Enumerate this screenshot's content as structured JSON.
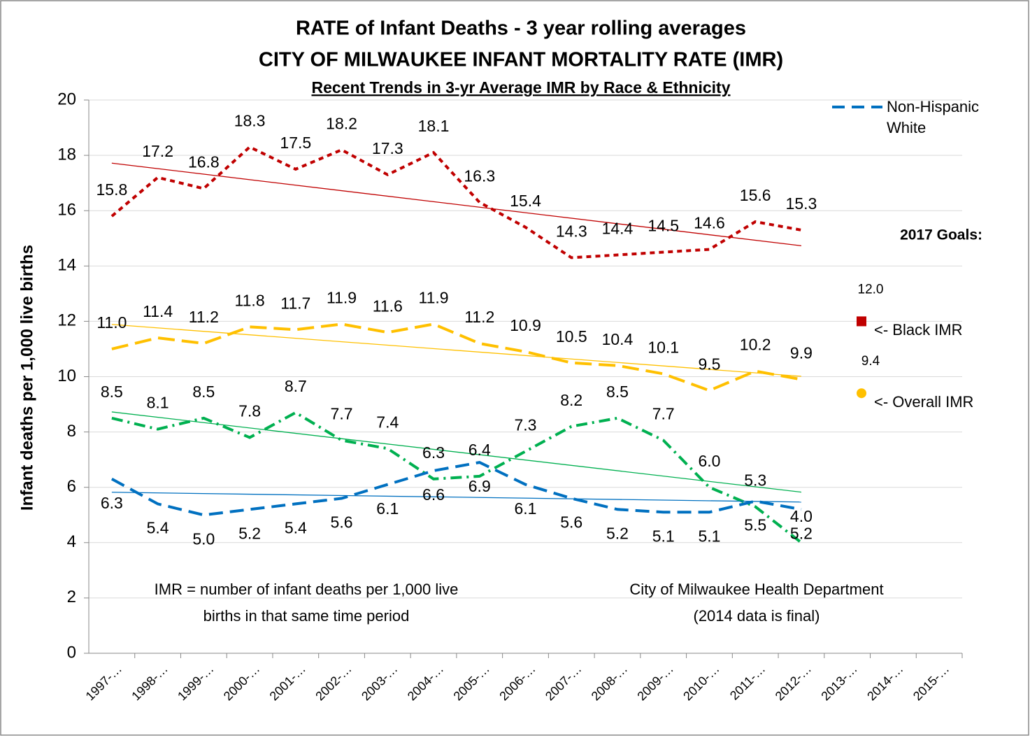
{
  "chart_data": {
    "type": "line",
    "title": "RATE of Infant Deaths - 3 year rolling averages",
    "subtitle": "CITY OF MILWAUKEE INFANT MORTALITY RATE (IMR)",
    "subtitle2": "Recent Trends in 3-yr Average IMR by Race & Ethnicity",
    "y_label": "Infant deaths  per 1,000 live births",
    "categories": [
      "1997-…",
      "1998-…",
      "1999-…",
      "2000-…",
      "2001-…",
      "2002-…",
      "2003-…",
      "2004-…",
      "2005-…",
      "2006-…",
      "2007-…",
      "2008-…",
      "2009-…",
      "2010-…",
      "2011-…",
      "2012-…",
      "2013-…",
      "2014-…",
      "2015-…"
    ],
    "ylim": [
      0,
      20
    ],
    "yticks": [
      0,
      2,
      4,
      6,
      8,
      10,
      12,
      14,
      16,
      18,
      20
    ],
    "grid": true,
    "trendlines": true,
    "series": [
      {
        "color": "#c00000",
        "dash": "7,6",
        "values": [
          15.8,
          17.2,
          16.8,
          18.3,
          17.5,
          18.2,
          17.3,
          18.1,
          16.3,
          15.4,
          14.3,
          14.4,
          14.5,
          14.6,
          15.6,
          15.3,
          null,
          null,
          null
        ],
        "value_labels": [
          "15.8",
          "17.2",
          "16.8",
          "18.3",
          "17.5",
          "18.2",
          "17.3",
          "18.1",
          "16.3",
          "15.4",
          "14.3",
          "14.4",
          "14.5",
          "14.6",
          "15.6",
          "15.3",
          null,
          null,
          null
        ]
      },
      {
        "color": "#ffc000",
        "dash": "24,10",
        "values": [
          11.0,
          11.4,
          11.2,
          11.8,
          11.7,
          11.9,
          11.6,
          11.9,
          11.2,
          10.9,
          10.5,
          10.4,
          10.1,
          9.5,
          10.2,
          9.9,
          null,
          null,
          null
        ],
        "value_labels": [
          "11.0",
          "11.4",
          "11.2",
          "11.8",
          "11.7",
          "11.9",
          "11.6",
          "11.9",
          "11.2",
          "10.9",
          "10.5",
          "10.4",
          "10.1",
          "9.5",
          "10.2",
          "9.9",
          null,
          null,
          null
        ]
      },
      {
        "color": "#00b050",
        "dash": "16,7,3,7",
        "values": [
          8.5,
          8.1,
          8.5,
          7.8,
          8.7,
          7.7,
          7.4,
          6.3,
          6.4,
          7.3,
          8.2,
          8.5,
          7.7,
          6.0,
          5.3,
          4.0,
          null,
          null,
          null
        ],
        "value_labels": [
          "8.5",
          "8.1",
          "8.5",
          "7.8",
          "8.7",
          "7.7",
          "7.4",
          "6.3",
          "6.4",
          "7.3",
          "8.2",
          "8.5",
          "7.7",
          "6.0",
          "5.3",
          "4.0",
          null,
          null,
          null
        ]
      },
      {
        "name": "Non-Hispanic White",
        "color": "#0070c0",
        "dash": "20,10",
        "values": [
          6.3,
          5.4,
          5.0,
          5.2,
          5.4,
          5.6,
          6.1,
          6.6,
          6.9,
          6.1,
          5.6,
          5.2,
          5.1,
          5.1,
          5.5,
          5.2,
          null,
          null,
          null
        ],
        "value_labels": [
          "6.3",
          "5.4",
          "5.0",
          "5.2",
          "5.4",
          "5.6",
          "6.1",
          "6.6",
          "6.9",
          "6.1",
          "5.6",
          "5.2",
          "5.1",
          "5.1",
          "5.5",
          "5.2",
          null,
          null,
          null
        ]
      }
    ],
    "goals_title": "2017 Goals:",
    "goals": [
      {
        "value": 12.0,
        "value_label": "12.0",
        "label": "<- Black  IMR",
        "color": "#c00000",
        "marker": "square"
      },
      {
        "value": 9.4,
        "value_label": "9.4",
        "label": "<- Overall  IMR",
        "color": "#ffc000",
        "marker": "circle"
      }
    ],
    "annotations": [
      "IMR = number of infant deaths per 1,000 live",
      "births in that same time period",
      "City of Milwaukee Health Department",
      "(2014 data is final)"
    ]
  }
}
